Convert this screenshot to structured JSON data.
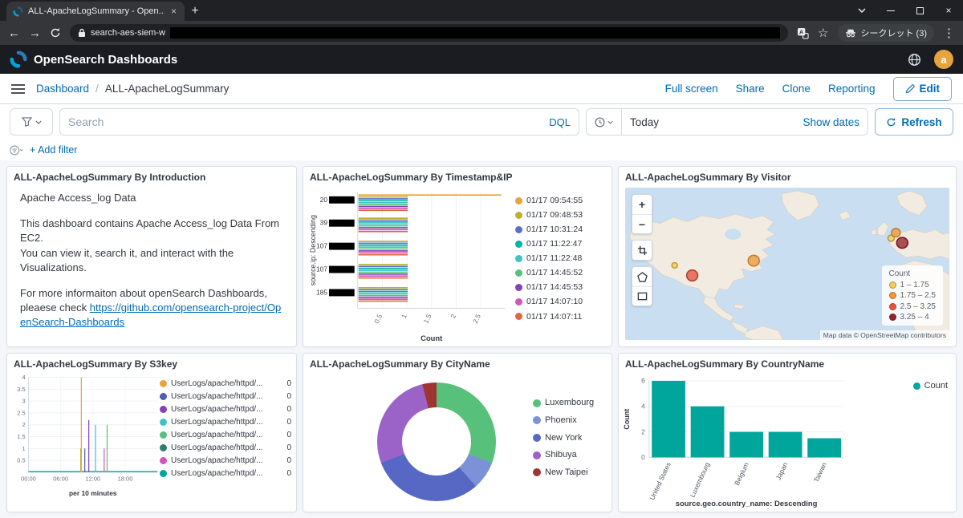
{
  "browser": {
    "tab_title": "ALL-ApacheLogSummary - Open...",
    "url_visible": "search-aes-siem-w",
    "profile_label": "シークレット (3)"
  },
  "app_header": {
    "brand": "OpenSearch Dashboards",
    "avatar_initial": "a"
  },
  "nav": {
    "breadcrumb_root": "Dashboard",
    "page_title": "ALL-ApacheLogSummary",
    "actions": [
      "Full screen",
      "Share",
      "Clone",
      "Reporting"
    ],
    "edit_label": "Edit"
  },
  "query_bar": {
    "search_placeholder": "Search",
    "dql_label": "DQL",
    "date_value": "Today",
    "show_dates_label": "Show dates",
    "refresh_label": "Refresh",
    "add_filter_label": "+ Add filter"
  },
  "panels": {
    "introduction": {
      "title": "ALL-ApacheLogSummary By Introduction",
      "p1": "Apache Access_log Data",
      "p2_line1": "This dashboard contains Apache Access_log Data From EC2.",
      "p2_line2": "You can view it, search it, and interact with the Visualizations.",
      "p3_text": "For more informaiton about openSearch Dashboards, pleaese check ",
      "p3_link": "https://github.com/opensearch-project/OpenSearch-Dashboards"
    },
    "timestamp_ip_title": "ALL-ApacheLogSummary By Timestamp&IP",
    "visitor_title": "ALL-ApacheLogSummary By Visitor",
    "s3key_title": "ALL-ApacheLogSummary By S3key",
    "cityname_title": "ALL-ApacheLogSummary By CityName",
    "countryname_title": "ALL-ApacheLogSummary By CountryName"
  },
  "map": {
    "legend_title": "Count",
    "legend_items": [
      {
        "label": "1 – 1.75",
        "color": "#F2CC54"
      },
      {
        "label": "1.75 – 2.5",
        "color": "#EC9A3C"
      },
      {
        "label": "2.5 – 3.25",
        "color": "#E2543D"
      },
      {
        "label": "3.25 – 4",
        "color": "#98232C"
      }
    ],
    "attribution": "Map data © OpenStreetMap contributors",
    "points": [
      {
        "x": 62,
        "y": 100,
        "r": 3.5,
        "color": "#F2CC54",
        "stroke": "#b99a2e"
      },
      {
        "x": 84,
        "y": 113,
        "r": 7,
        "color": "#E2543D",
        "stroke": "#b03826"
      },
      {
        "x": 161,
        "y": 94,
        "r": 7,
        "color": "#EC9A3C",
        "stroke": "#c27a22"
      },
      {
        "x": 333,
        "y": 65,
        "r": 4,
        "color": "#F2CC54",
        "stroke": "#b99a2e"
      },
      {
        "x": 339,
        "y": 58,
        "r": 5.5,
        "color": "#EC9A3C",
        "stroke": "#c27a22"
      },
      {
        "x": 347,
        "y": 71,
        "r": 7,
        "color": "#98232C",
        "stroke": "#6e1218"
      }
    ]
  },
  "chart_data": [
    {
      "id": "timestamp_ip",
      "type": "bar",
      "orientation": "horizontal",
      "title": "ALL-ApacheLogSummary By Timestamp&IP",
      "ylabel": "source.ip: Descending",
      "xlabel": "Count",
      "xticks": [
        0.5,
        1,
        1.5,
        2,
        2.5
      ],
      "xmax": 3,
      "categories": [
        "20",
        "39",
        "107",
        "107",
        "185"
      ],
      "categories_redacted": true,
      "series": [
        {
          "name": "01/17 09:54:55",
          "color": "#E8A33D",
          "values": [
            2.9,
            0,
            0,
            0,
            0
          ]
        },
        {
          "name": "01/17 09:48:53",
          "color": "#BDAF31",
          "values": [
            1,
            1,
            1,
            1,
            1
          ]
        },
        {
          "name": "01/17 10:31:24",
          "color": "#5B6ECB",
          "values": [
            1,
            1,
            1,
            1,
            1
          ]
        },
        {
          "name": "01/17 11:22:47",
          "color": "#00B3A4",
          "values": [
            1,
            1,
            1,
            1,
            1
          ]
        },
        {
          "name": "01/17 11:22:48",
          "color": "#3FC1C9",
          "values": [
            1,
            1,
            1,
            1,
            1
          ]
        },
        {
          "name": "01/17 14:45:52",
          "color": "#57C17B",
          "values": [
            1,
            1,
            1,
            1,
            1
          ]
        },
        {
          "name": "01/17 14:45:53",
          "color": "#8441B8",
          "values": [
            1,
            1,
            1,
            1,
            1
          ]
        },
        {
          "name": "01/17 14:07:10",
          "color": "#D355B8",
          "values": [
            1,
            1,
            1,
            1,
            1
          ]
        },
        {
          "name": "01/17 14:07:11",
          "color": "#E0683C",
          "values": [
            1,
            1,
            1,
            1,
            1
          ]
        }
      ]
    },
    {
      "id": "s3key",
      "type": "line",
      "title": "ALL-ApacheLogSummary By S3key",
      "xlabel": "per 10 minutes",
      "xticks": [
        "00:00",
        "06:00",
        "12:00",
        "18:00"
      ],
      "ylim": [
        0,
        4
      ],
      "yticks": [
        0.5,
        1,
        1.5,
        2,
        2.5,
        3,
        3.5,
        4
      ],
      "baseline_color": "#00A69B",
      "spikes": [
        {
          "x_frac": 0.405,
          "value": 1,
          "color": "#BDAF31"
        },
        {
          "x_frac": 0.41,
          "value": 4,
          "color": "#E8A33D"
        },
        {
          "x_frac": 0.437,
          "value": 1,
          "color": "#4C5FB0"
        },
        {
          "x_frac": 0.468,
          "value": 2.2,
          "color": "#8441B8"
        },
        {
          "x_frac": 0.52,
          "value": 2,
          "color": "#3FC1C9"
        },
        {
          "x_frac": 0.587,
          "value": 1,
          "color": "#D355B8"
        },
        {
          "x_frac": 0.61,
          "value": 2,
          "color": "#57C17B"
        }
      ],
      "legend": [
        {
          "label": "UserLogs/apache/httpd/...",
          "value": "0",
          "color": "#E8A33D"
        },
        {
          "label": "UserLogs/apache/httpd/...",
          "value": "0",
          "color": "#4C5FB0"
        },
        {
          "label": "UserLogs/apache/httpd/...",
          "value": "0",
          "color": "#8441B8"
        },
        {
          "label": "UserLogs/apache/httpd/...",
          "value": "0",
          "color": "#3FC1C9"
        },
        {
          "label": "UserLogs/apache/httpd/...",
          "value": "0",
          "color": "#57C17B"
        },
        {
          "label": "UserLogs/apache/httpd/...",
          "value": "0",
          "color": "#2E7D6E"
        },
        {
          "label": "UserLogs/apache/httpd/...",
          "value": "0",
          "color": "#D355B8"
        },
        {
          "label": "UserLogs/apache/httpd/...",
          "value": "0",
          "color": "#00A69B"
        }
      ]
    },
    {
      "id": "cityname",
      "type": "pie",
      "donut": true,
      "title": "ALL-ApacheLogSummary By CityName",
      "labels": [
        "Luxembourg",
        "Phoenix",
        "New York",
        "Shibuya",
        "New Taipei"
      ],
      "values": [
        4,
        1,
        4,
        3.5,
        0.5
      ],
      "colors": [
        "#57C17B",
        "#7B91D8",
        "#5668C4",
        "#9B62C8",
        "#9E3533"
      ]
    },
    {
      "id": "countryname",
      "type": "bar",
      "title": "ALL-ApacheLogSummary By CountryName",
      "categories": [
        "United States",
        "Luxembourg",
        "Belgium",
        "Japan",
        "Taiwan"
      ],
      "values": [
        6,
        4,
        2,
        2,
        1.5
      ],
      "color": "#00A69B",
      "ylabel": "Count",
      "xlabel": "source.geo.country_name: Descending",
      "yticks": [
        0,
        2,
        4,
        6
      ],
      "ymax": 6,
      "legend": [
        {
          "label": "Count",
          "color": "#00A69B"
        }
      ]
    }
  ]
}
